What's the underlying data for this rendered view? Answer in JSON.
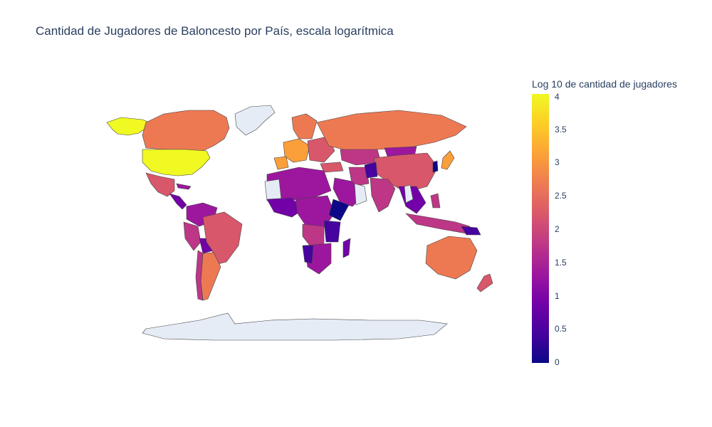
{
  "title": "Cantidad de Jugadores de Baloncesto por País, escala logarítmica",
  "colorbar": {
    "title": "Log 10 de cantidad de jugadores",
    "ticks": [
      "4",
      "3.5",
      "3",
      "2.5",
      "2",
      "1.5",
      "1",
      "0.5",
      "0"
    ],
    "range": [
      0,
      4
    ],
    "colorscale": [
      "#0d0887",
      "#46039f",
      "#7201a8",
      "#9c179e",
      "#bd3786",
      "#d8576b",
      "#ed7953",
      "#fb9f3a",
      "#fdca26",
      "#f0f921"
    ]
  },
  "map": {
    "projection": "natural earth",
    "no_data_color": "#e5ecf6",
    "land_border_color": "#444444"
  }
}
